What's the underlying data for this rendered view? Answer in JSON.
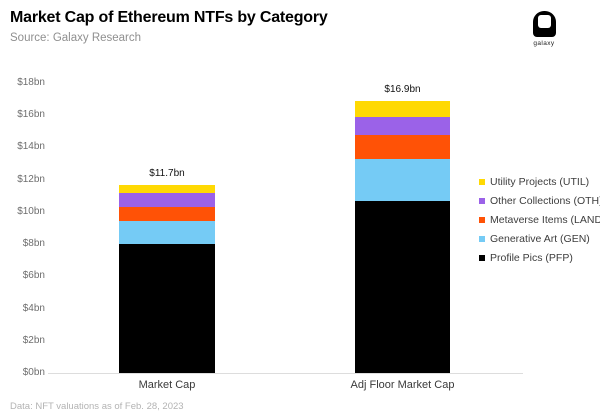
{
  "header": {
    "title": "Market Cap of Ethereum NTFs by Category",
    "source": "Source: Galaxy Research",
    "logo_text": "galaxy"
  },
  "footer": {
    "note": "Data: NFT valuations as of Feb. 28, 2023"
  },
  "chart_data": {
    "type": "bar",
    "stacked": true,
    "title": "Market Cap of Ethereum NTFs by Category",
    "subtitle": "Source: Galaxy Research",
    "categories": [
      "Market Cap",
      "Adj Floor Market Cap"
    ],
    "series": [
      {
        "name": "Profile Pics (PFP)",
        "color": "#000000",
        "values": [
          8.0,
          10.7
        ]
      },
      {
        "name": "Generative Art (GEN)",
        "color": "#75CBF5",
        "values": [
          1.45,
          2.6
        ]
      },
      {
        "name": "Metaverse Items (LAND)",
        "color": "#FF5206",
        "values": [
          0.85,
          1.5
        ]
      },
      {
        "name": "Other Collections (OTH)",
        "color": "#9B62E8",
        "values": [
          0.9,
          1.1
        ]
      },
      {
        "name": "Utility Projects (UTIL)",
        "color": "#FFD903",
        "values": [
          0.5,
          1.0
        ]
      }
    ],
    "totals": [
      11.7,
      16.9
    ],
    "totals_labels": [
      "$11.7bn",
      "$16.9bn"
    ],
    "xlabel": "",
    "ylabel": "",
    "ylim": [
      0,
      18
    ],
    "ytick_step": 2,
    "ytick_labels": [
      "$0bn",
      "$2bn",
      "$4bn",
      "$6bn",
      "$8bn",
      "$10bn",
      "$12bn",
      "$14bn",
      "$16bn",
      "$18bn"
    ],
    "grid": false,
    "legend_position": "right",
    "legend_order_top_to_bottom": [
      "Utility Projects (UTIL)",
      "Other Collections (OTH)",
      "Metaverse Items (LAND)",
      "Generative Art (GEN)",
      "Profile Pics (PFP)"
    ]
  }
}
